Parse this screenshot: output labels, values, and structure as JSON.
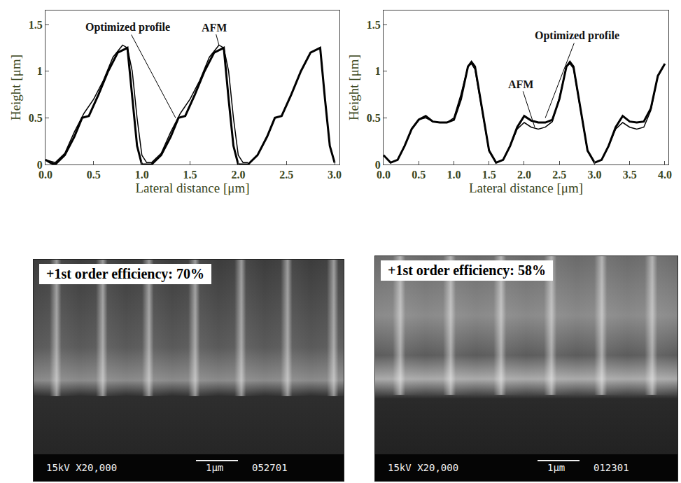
{
  "chart_data": [
    {
      "type": "line",
      "xlabel": "Lateral distance [μm]",
      "ylabel": "Height [μm]",
      "xlim": [
        0,
        3.05
      ],
      "xticks": [
        {
          "value": 0,
          "label": "0.0"
        },
        0.5,
        {
          "value": 1,
          "label": "1.0"
        },
        1.5,
        {
          "value": 2,
          "label": "2.0"
        },
        2.5,
        {
          "value": 3,
          "label": "3.0"
        }
      ],
      "ylim": [
        0,
        1.65
      ],
      "yticks": [
        0,
        0.5,
        1,
        1.5
      ],
      "series": [
        {
          "name": "Optimized profile",
          "color": "#000000",
          "line_style": "solid",
          "x": [
            0,
            0.05,
            0.1,
            0.2,
            0.3,
            0.38,
            0.45,
            0.55,
            0.65,
            0.75,
            0.85,
            0.9,
            0.95,
            1.0,
            1.1,
            1.2,
            1.3,
            1.38,
            1.45,
            1.55,
            1.65,
            1.75,
            1.85,
            1.9,
            1.95,
            2.0,
            2.1,
            2.2,
            2.3,
            2.38,
            2.45,
            2.55,
            2.65,
            2.75,
            2.85,
            2.9,
            2.95,
            3.0
          ],
          "values": [
            0.05,
            0.02,
            0,
            0.1,
            0.3,
            0.5,
            0.52,
            0.75,
            1.0,
            1.2,
            1.25,
            0.7,
            0.2,
            0,
            0,
            0.1,
            0.3,
            0.5,
            0.52,
            0.75,
            1.0,
            1.2,
            1.25,
            0.7,
            0.2,
            0,
            0,
            0.1,
            0.3,
            0.5,
            0.52,
            0.75,
            1.0,
            1.2,
            1.25,
            0.7,
            0.2,
            0.02
          ]
        },
        {
          "name": "AFM",
          "color": "#000000",
          "line_style": "solid",
          "x": [
            0,
            0.1,
            0.2,
            0.3,
            0.4,
            0.5,
            0.6,
            0.7,
            0.8,
            0.85,
            0.9,
            0.95,
            1.0,
            1.05,
            1.1,
            1.2,
            1.3,
            1.4,
            1.5,
            1.6,
            1.7,
            1.8,
            1.85,
            1.9,
            1.95,
            2.0,
            2.05,
            2.1
          ],
          "values": [
            0.05,
            0.02,
            0.12,
            0.35,
            0.55,
            0.7,
            0.9,
            1.15,
            1.28,
            1.25,
            1.0,
            0.5,
            0.1,
            0.02,
            0.02,
            0.12,
            0.35,
            0.55,
            0.7,
            0.9,
            1.15,
            1.28,
            1.25,
            1.0,
            0.5,
            0.1,
            0.02,
            0.02
          ]
        }
      ],
      "annotations": [
        {
          "text": "Optimized profile",
          "x": 1.35,
          "y": 0.5,
          "ax": 0.85,
          "ay": 1.47
        },
        {
          "text": "AFM",
          "x": 1.8,
          "y": 1.28,
          "ax": 1.75,
          "ay": 1.47
        }
      ]
    },
    {
      "type": "line",
      "xlabel": "Lateral distance [μm]",
      "ylabel": "Height [μm]",
      "xlim": [
        0,
        4.05
      ],
      "xticks": [
        {
          "value": 0,
          "label": "0.0"
        },
        0.5,
        {
          "value": 1,
          "label": "1.0"
        },
        1.5,
        {
          "value": 2,
          "label": "2.0"
        },
        2.5,
        {
          "value": 3,
          "label": "3.0"
        },
        3.5,
        {
          "value": 4,
          "label": "4.0"
        }
      ],
      "ylim": [
        0,
        1.65
      ],
      "yticks": [
        0,
        0.5,
        1,
        1.5
      ],
      "series": [
        {
          "name": "Optimized profile",
          "color": "#000000",
          "line_style": "solid",
          "x": [
            0,
            0.1,
            0.2,
            0.3,
            0.4,
            0.5,
            0.6,
            0.7,
            0.8,
            0.9,
            1.0,
            1.1,
            1.2,
            1.25,
            1.3,
            1.4,
            1.5,
            1.6,
            1.7,
            1.8,
            1.9,
            2.0,
            2.1,
            2.2,
            2.3,
            2.4,
            2.5,
            2.6,
            2.65,
            2.7,
            2.8,
            2.9,
            3.0,
            3.1,
            3.2,
            3.3,
            3.4,
            3.5,
            3.6,
            3.7,
            3.8,
            3.9,
            4.0
          ],
          "values": [
            0.1,
            0.02,
            0.05,
            0.2,
            0.38,
            0.48,
            0.52,
            0.46,
            0.45,
            0.45,
            0.48,
            0.7,
            1.05,
            1.1,
            1.05,
            0.6,
            0.15,
            0.02,
            0.05,
            0.2,
            0.4,
            0.52,
            0.47,
            0.45,
            0.45,
            0.48,
            0.7,
            1.05,
            1.1,
            1.05,
            0.6,
            0.15,
            0.02,
            0.05,
            0.2,
            0.4,
            0.52,
            0.46,
            0.45,
            0.46,
            0.6,
            0.95,
            1.08
          ]
        },
        {
          "name": "AFM",
          "color": "#000000",
          "line_style": "solid",
          "x": [
            0,
            0.1,
            0.2,
            0.3,
            0.4,
            0.5,
            0.6,
            0.7,
            0.8,
            0.9,
            1.0,
            1.1,
            1.2,
            1.25,
            1.3,
            1.4,
            1.5,
            1.6,
            1.7,
            1.8,
            1.9,
            2.0,
            2.1,
            2.2,
            2.3,
            2.4,
            2.5,
            2.6,
            2.65,
            2.7,
            2.8,
            2.9,
            3.0,
            3.1,
            3.2,
            3.3,
            3.4,
            3.5,
            3.6,
            3.7,
            3.8,
            3.9,
            4.0
          ],
          "values": [
            0.1,
            0.02,
            0.05,
            0.2,
            0.38,
            0.48,
            0.5,
            0.46,
            0.45,
            0.45,
            0.5,
            0.75,
            1.05,
            1.08,
            1.02,
            0.58,
            0.14,
            0.02,
            0.05,
            0.2,
            0.38,
            0.45,
            0.4,
            0.38,
            0.4,
            0.46,
            0.72,
            1.05,
            1.08,
            1.03,
            0.58,
            0.14,
            0.02,
            0.05,
            0.2,
            0.38,
            0.45,
            0.4,
            0.38,
            0.4,
            0.58,
            0.95,
            1.08
          ]
        }
      ],
      "annotations": [
        {
          "text": "Optimized profile",
          "x": 2.3,
          "y": 0.5,
          "ax": 2.75,
          "ay": 1.38
        },
        {
          "text": "AFM",
          "x": 2.15,
          "y": 0.4,
          "ax": 1.95,
          "ay": 0.86
        }
      ]
    }
  ],
  "sem_images": [
    {
      "label": "+1st order efficiency: 70%",
      "footer": {
        "voltage_magnification": "15kV X20,000",
        "scale": "1μm",
        "id": "052701"
      }
    },
    {
      "label": "+1st order efficiency: 58%",
      "footer": {
        "voltage_magnification": "15kV X20,000",
        "scale": "1μm",
        "id": "012301"
      }
    }
  ]
}
